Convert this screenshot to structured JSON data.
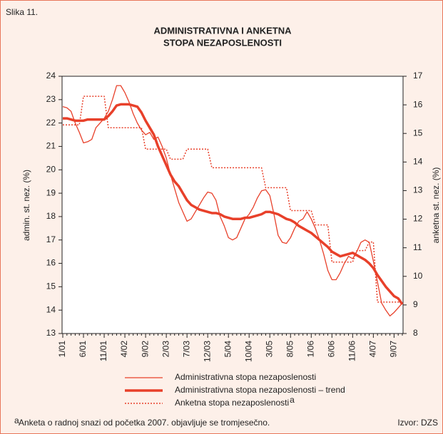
{
  "chart_data": {
    "type": "line",
    "label": "Slika 11.",
    "title": [
      "ADMINISTRATIVNA I ANKETNA",
      "STOPA NEZAPOSLENOSTI"
    ],
    "ylabel": "admin. st. nez. (%)",
    "y2label": "anketna st. nez. (%)",
    "categories": [
      "1/01",
      null,
      null,
      null,
      null,
      "6/01",
      null,
      null,
      null,
      null,
      "11/01",
      null,
      null,
      null,
      null,
      "4/02",
      null,
      null,
      null,
      null,
      "9/02",
      null,
      null,
      null,
      null,
      "2/03",
      null,
      null,
      null,
      null,
      "7/03",
      null,
      null,
      null,
      null,
      "12/03",
      null,
      null,
      null,
      null,
      "5/04",
      null,
      null,
      null,
      null,
      "10/04",
      null,
      null,
      null,
      null,
      "3/05",
      null,
      null,
      null,
      null,
      "8/05",
      null,
      null,
      null,
      null,
      "1/06",
      null,
      null,
      null,
      null,
      "6/06",
      null,
      null,
      null,
      null,
      "11/06",
      null,
      null,
      null,
      null,
      "4/07",
      null,
      null,
      null,
      null,
      "9/07",
      null,
      null
    ],
    "ylim": [
      13,
      24
    ],
    "yticks": [
      13,
      14,
      15,
      16,
      17,
      18,
      19,
      20,
      21,
      22,
      23,
      24
    ],
    "y2lim": [
      8,
      17
    ],
    "y2ticks": [
      8,
      9,
      10,
      11,
      12,
      13,
      14,
      15,
      16,
      17
    ],
    "series": [
      {
        "name": "Administrativna stopa nezaposlenosti",
        "color": "#e8402a",
        "width": 1.3,
        "dash": "solid",
        "values": [
          22.7,
          22.65,
          22.5,
          22.0,
          21.6,
          21.15,
          21.2,
          21.3,
          21.8,
          22.0,
          22.2,
          22.5,
          23.0,
          23.6,
          23.6,
          23.3,
          22.9,
          22.4,
          22.0,
          21.7,
          21.5,
          21.6,
          21.3,
          21.4,
          21.0,
          20.5,
          19.8,
          19.2,
          18.6,
          18.2,
          17.8,
          17.9,
          18.2,
          18.5,
          18.8,
          19.05,
          19.0,
          18.7,
          18.0,
          17.6,
          17.1,
          17.0,
          17.1,
          17.5,
          17.9,
          18.1,
          18.4,
          18.8,
          19.1,
          19.15,
          18.9,
          18.1,
          17.2,
          16.9,
          16.85,
          17.1,
          17.5,
          17.8,
          17.9,
          18.2,
          17.9,
          17.5,
          17.0,
          16.4,
          15.7,
          15.3,
          15.3,
          15.6,
          16.0,
          16.3,
          16.2,
          16.5,
          16.9,
          17.0,
          16.9,
          16.1,
          15.2,
          14.3,
          14.0,
          13.75,
          13.9,
          14.1,
          14.3
        ]
      },
      {
        "name": "Administrativna stopa nezaposlenosti – trend",
        "color": "#e8402a",
        "width": 3.5,
        "dash": "solid",
        "values": [
          22.2,
          22.2,
          22.15,
          22.1,
          22.1,
          22.1,
          22.15,
          22.15,
          22.15,
          22.15,
          22.15,
          22.3,
          22.5,
          22.75,
          22.8,
          22.8,
          22.8,
          22.75,
          22.7,
          22.45,
          22.1,
          21.8,
          21.5,
          21.0,
          20.6,
          20.2,
          19.8,
          19.5,
          19.3,
          19.0,
          18.7,
          18.5,
          18.4,
          18.3,
          18.25,
          18.2,
          18.15,
          18.15,
          18.1,
          18.0,
          17.95,
          17.9,
          17.9,
          17.9,
          17.95,
          17.95,
          18.0,
          18.05,
          18.1,
          18.2,
          18.2,
          18.15,
          18.1,
          18.0,
          17.9,
          17.85,
          17.75,
          17.6,
          17.5,
          17.4,
          17.3,
          17.15,
          17.0,
          16.85,
          16.7,
          16.5,
          16.4,
          16.3,
          16.35,
          16.4,
          16.45,
          16.35,
          16.25,
          16.15,
          16.0,
          15.8,
          15.5,
          15.25,
          15.0,
          14.8,
          14.6,
          14.5,
          14.25
        ]
      },
      {
        "name": "Anketna stopa nezaposlenosti",
        "color": "#e8402a",
        "width": 1.5,
        "dash": "dotted",
        "axis": "y2",
        "values": [
          15.3,
          15.3,
          15.3,
          15.3,
          15.3,
          16.3,
          16.3,
          16.3,
          16.3,
          16.3,
          16.3,
          15.2,
          15.2,
          15.2,
          15.2,
          15.2,
          15.2,
          15.2,
          15.2,
          15.2,
          14.45,
          14.45,
          14.45,
          14.45,
          14.45,
          14.45,
          14.1,
          14.1,
          14.1,
          14.1,
          14.45,
          14.45,
          14.45,
          14.45,
          14.45,
          14.45,
          13.8,
          13.8,
          13.8,
          13.8,
          13.8,
          13.8,
          13.8,
          13.8,
          13.8,
          13.8,
          13.8,
          13.8,
          13.8,
          13.1,
          13.1,
          13.1,
          13.1,
          13.1,
          13.1,
          12.3,
          12.3,
          12.3,
          12.3,
          12.3,
          12.3,
          11.8,
          11.8,
          11.8,
          11.8,
          10.5,
          10.5,
          10.5,
          10.5,
          10.5,
          10.5,
          10.9,
          10.9,
          10.9,
          11.2,
          11.2,
          9.1,
          9.1,
          9.1,
          9.1,
          9.1,
          9.1,
          9.1
        ]
      }
    ],
    "footnote": {
      "marker": "a",
      "text": "Anketa o radnoj snazi od početka 2007. objavljuje se tromjesečno."
    },
    "source": "Izvor: DZS"
  }
}
